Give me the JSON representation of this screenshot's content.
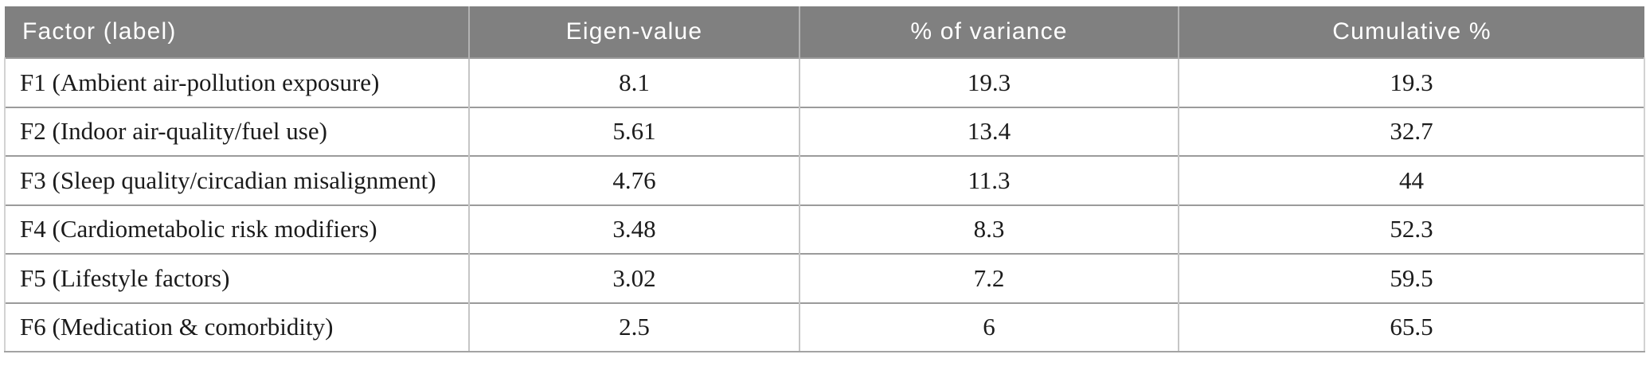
{
  "table": {
    "header": [
      "Factor (label)",
      "Eigen-value",
      "% of variance",
      "Cumulative %"
    ],
    "rows": [
      [
        "F1 (Ambient air-pollution exposure)",
        "8.1",
        "19.3",
        "19.3"
      ],
      [
        "F2 (Indoor air-quality/fuel use)",
        "5.61",
        "13.4",
        "32.7"
      ],
      [
        "F3 (Sleep quality/circadian misalignment)",
        "4.76",
        "11.3",
        "44"
      ],
      [
        "F4 (Cardiometabolic risk modifiers)",
        "3.48",
        "8.3",
        "52.3"
      ],
      [
        "F5 (Lifestyle factors)",
        "3.02",
        "7.2",
        "59.5"
      ],
      [
        "F6 (Medication & comorbidity)",
        "2.5",
        "6",
        "65.5"
      ]
    ]
  },
  "chart_data": {
    "type": "table",
    "columns": [
      "Factor (label)",
      "Eigen-value",
      "% of variance",
      "Cumulative %"
    ],
    "rows": [
      {
        "factor": "F1 (Ambient air-pollution exposure)",
        "eigen_value": 8.1,
        "pct_variance": 19.3,
        "cumulative_pct": 19.3
      },
      {
        "factor": "F2 (Indoor air-quality/fuel use)",
        "eigen_value": 5.61,
        "pct_variance": 13.4,
        "cumulative_pct": 32.7
      },
      {
        "factor": "F3 (Sleep quality/circadian misalignment)",
        "eigen_value": 4.76,
        "pct_variance": 11.3,
        "cumulative_pct": 44
      },
      {
        "factor": "F4 (Cardiometabolic risk modifiers)",
        "eigen_value": 3.48,
        "pct_variance": 8.3,
        "cumulative_pct": 52.3
      },
      {
        "factor": "F5 (Lifestyle factors)",
        "eigen_value": 3.02,
        "pct_variance": 7.2,
        "cumulative_pct": 59.5
      },
      {
        "factor": "F6 (Medication & comorbidity)",
        "eigen_value": 2.5,
        "pct_variance": 6,
        "cumulative_pct": 65.5
      }
    ]
  },
  "colors": {
    "header_background": "#808080",
    "header_text": "#ffffff",
    "body_text": "#1b1b1b",
    "row_divider": "#9b9b9b",
    "column_divider": "#c6c6c6",
    "page_background": "#ffffff"
  }
}
